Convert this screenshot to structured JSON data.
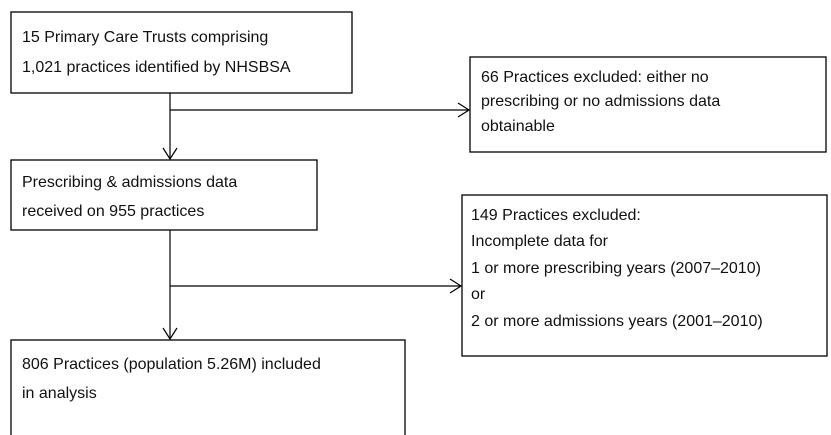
{
  "nodes": [
    {
      "lines": [
        "15 Primary Care Trusts comprising",
        "1,021 practices identified by NHSBSA"
      ]
    },
    {
      "lines": [
        "66 Practices excluded: either no",
        "prescribing or no admissions data",
        "obtainable"
      ]
    },
    {
      "lines": [
        "Prescribing & admissions data",
        "received on 955 practices"
      ]
    },
    {
      "lines": [
        "149 Practices excluded:",
        "Incomplete data for",
        "1 or more prescribing years (2007–2010)",
        "or",
        "2 or more admissions years (2001–2010)"
      ]
    },
    {
      "lines": [
        "806 Practices (population 5.26M) included",
        "in analysis"
      ]
    }
  ]
}
